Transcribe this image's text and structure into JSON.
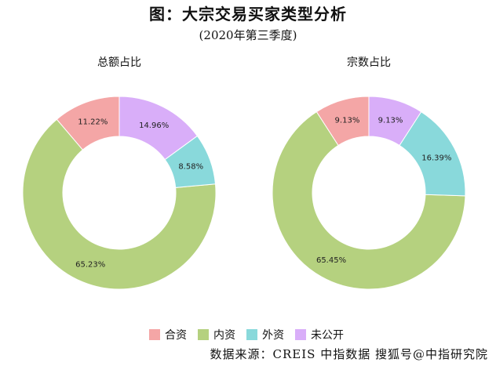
{
  "title": "图：大宗交易买家类型分析",
  "subtitle": "(2020年第三季度)",
  "source": "数据来源：CREIS 中指数据  搜狐号@中指研究院",
  "colors": {
    "合资": "#f4a6a6",
    "内资": "#b5d17f",
    "外资": "#89d9db",
    "未公开": "#d9aef9"
  },
  "chart_data": [
    {
      "type": "pie",
      "donut": true,
      "title": "总额占比",
      "categories": [
        "合资",
        "内资",
        "外资",
        "未公开"
      ],
      "values": [
        11.22,
        65.23,
        8.58,
        14.96
      ],
      "labels": [
        "11.22%",
        "65.23%",
        "8.58%",
        "14.96%"
      ],
      "legend": "bottom"
    },
    {
      "type": "pie",
      "donut": true,
      "title": "宗数占比",
      "categories": [
        "合资",
        "内资",
        "外资",
        "未公开"
      ],
      "values": [
        9.13,
        65.45,
        16.39,
        9.13
      ],
      "labels": [
        "9.13%",
        "65.45%",
        "16.39%",
        "9.13%"
      ],
      "legend": "bottom"
    }
  ]
}
